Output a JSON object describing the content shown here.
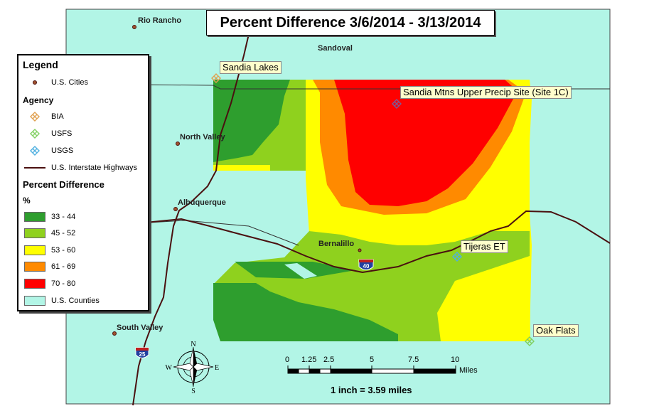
{
  "title": "Percent Difference 3/6/2014 - 3/13/2014",
  "colors": {
    "county_fill": "#b2f5e6",
    "highway": "#4a1010",
    "bia": "#e0a050",
    "usfs": "#80d060",
    "usgs": "#50b0e0",
    "class_33_44": "#2e9e2e",
    "class_45_52": "#8fd11e",
    "class_53_60": "#ffff00",
    "class_61_69": "#ff8a00",
    "class_70_80": "#ff0000"
  },
  "cities": {
    "rio_rancho": "Rio Rancho",
    "sandoval": "Sandoval",
    "north_valley": "North Valley",
    "albuquerque": "Albuquerque",
    "bernalillo": "Bernalillo",
    "south_valley": "South Valley"
  },
  "sites": {
    "sandia_lakes": "Sandia Lakes",
    "sandia_mtns": "Sandia Mtns Upper Precip Site (Site 1C)",
    "tijeras": "Tijeras ET",
    "oak_flats": "Oak Flats"
  },
  "shields": {
    "i40": "40",
    "i25": "25"
  },
  "compass": {
    "n": "N",
    "s": "S",
    "e": "E",
    "w": "W"
  },
  "legend": {
    "title": "Legend",
    "us_cities": "U.S. Cities",
    "agency_title": "Agency",
    "bia": "BIA",
    "usfs": "USFS",
    "usgs": "USGS",
    "highways": "U.S. Interstate Highways",
    "pd_title": "Percent Difference",
    "pd_unit": "%",
    "classes": [
      "33 - 44",
      "45 - 52",
      "53 - 60",
      "61 - 69",
      "70 - 80"
    ],
    "counties": "U.S. Counties"
  },
  "scale": {
    "ticks": [
      "0",
      "1.25",
      "2.5",
      "5",
      "7.5",
      "10"
    ],
    "unit": "Miles",
    "caption": "1 inch = 3.59 miles"
  }
}
